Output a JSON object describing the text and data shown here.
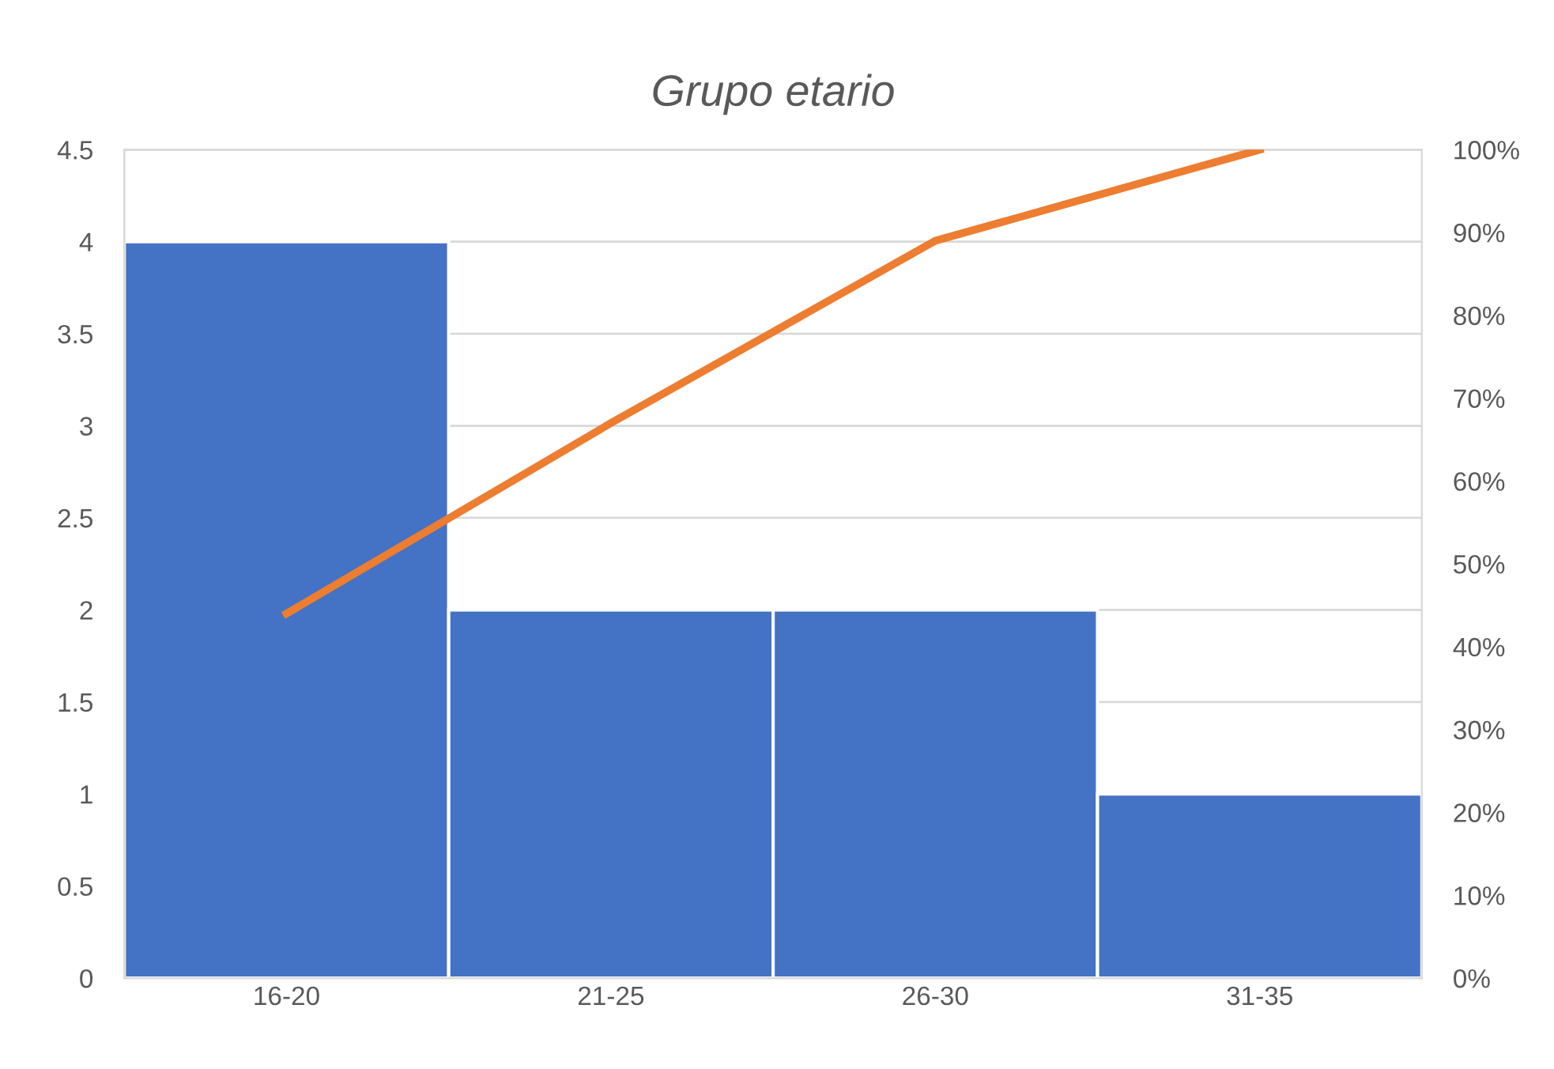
{
  "chart_data": {
    "type": "bar",
    "title": "Grupo etario",
    "categories": [
      "16-20",
      "21-25",
      "26-30",
      "31-35"
    ],
    "series": [
      {
        "color": "#4472c4",
        "values": [
          4,
          2,
          2,
          1
        ]
      },
      {
        "type": "line",
        "axis": "y2",
        "color": "#ed7d31",
        "values": [
          44,
          67,
          89,
          100
        ]
      }
    ],
    "ylim": [
      0,
      4.5
    ],
    "yticks": [
      0,
      0.5,
      1,
      1.5,
      2,
      2.5,
      3,
      3.5,
      4,
      4.5
    ],
    "y2lim": [
      0,
      100
    ],
    "y2ticks": [
      {
        "value": 0,
        "label": "0%"
      },
      {
        "value": 10,
        "label": "10%"
      },
      {
        "value": 20,
        "label": "20%"
      },
      {
        "value": 30,
        "label": "30%"
      },
      {
        "value": 40,
        "label": "40%"
      },
      {
        "value": 50,
        "label": "50%"
      },
      {
        "value": 60,
        "label": "60%"
      },
      {
        "value": 70,
        "label": "70%"
      },
      {
        "value": 80,
        "label": "80%"
      },
      {
        "value": 90,
        "label": "90%"
      },
      {
        "value": 100,
        "label": "100%"
      }
    ],
    "grid": "y",
    "legend": false,
    "marker": "none",
    "line_style": "solid"
  }
}
